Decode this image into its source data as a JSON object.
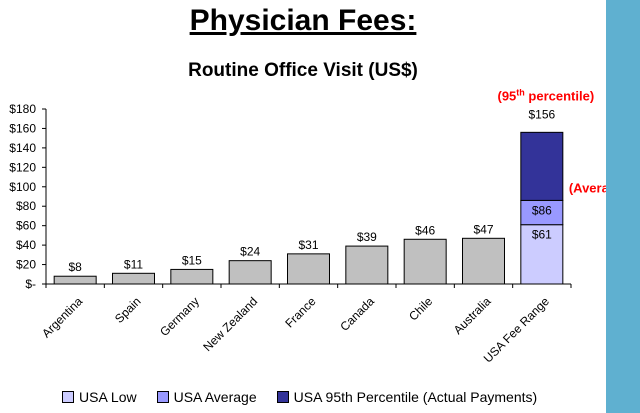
{
  "title": "Physician Fees:",
  "chart_data": {
    "type": "bar",
    "title": "Routine Office Visit (US$)",
    "xlabel": "",
    "ylabel": "",
    "ylim": [
      0,
      180
    ],
    "yticks": [
      {
        "value": 180,
        "label": "$180"
      },
      {
        "value": 160,
        "label": "$160"
      },
      {
        "value": 140,
        "label": "$140"
      },
      {
        "value": 120,
        "label": "$120"
      },
      {
        "value": 100,
        "label": "$100"
      },
      {
        "value": 80,
        "label": "$80"
      },
      {
        "value": 60,
        "label": "$60"
      },
      {
        "value": 40,
        "label": "$40"
      },
      {
        "value": 20,
        "label": "$20"
      },
      {
        "value": 0,
        "label": "$-"
      }
    ],
    "categories": [
      "Argentina",
      "Spain",
      "Germany",
      "New Zealand",
      "France",
      "Canada",
      "Chile",
      "Australia"
    ],
    "values": [
      8,
      11,
      15,
      24,
      31,
      39,
      46,
      47
    ],
    "value_labels": [
      "$8",
      "$11",
      "$15",
      "$24",
      "$31",
      "$39",
      "$46",
      "$47"
    ],
    "bar_color": "#c0c0c0",
    "stacked_bar": {
      "category": "USA Fee Range",
      "segments": [
        {
          "name": "USA Low",
          "value": 61,
          "label": "$61",
          "color": "#ccccff"
        },
        {
          "name": "USA Average",
          "value": 86,
          "label": "$86",
          "color": "#9999ff"
        },
        {
          "name": "USA 95th Percentile (Actual Payments)",
          "value": 156,
          "label": "$156",
          "color": "#333399"
        }
      ]
    },
    "annotations": {
      "percentile_prefix": "(95",
      "percentile_sup": "th",
      "percentile_suffix": " percentile)",
      "average": "(Average)"
    },
    "legend": [
      "USA Low",
      "USA Average",
      "USA 95th Percentile (Actual Payments)"
    ],
    "legend_position": "bottom",
    "grid": false
  },
  "colors": {
    "accent_bar": "#5fb0d0",
    "annotation": "#ff0000"
  }
}
